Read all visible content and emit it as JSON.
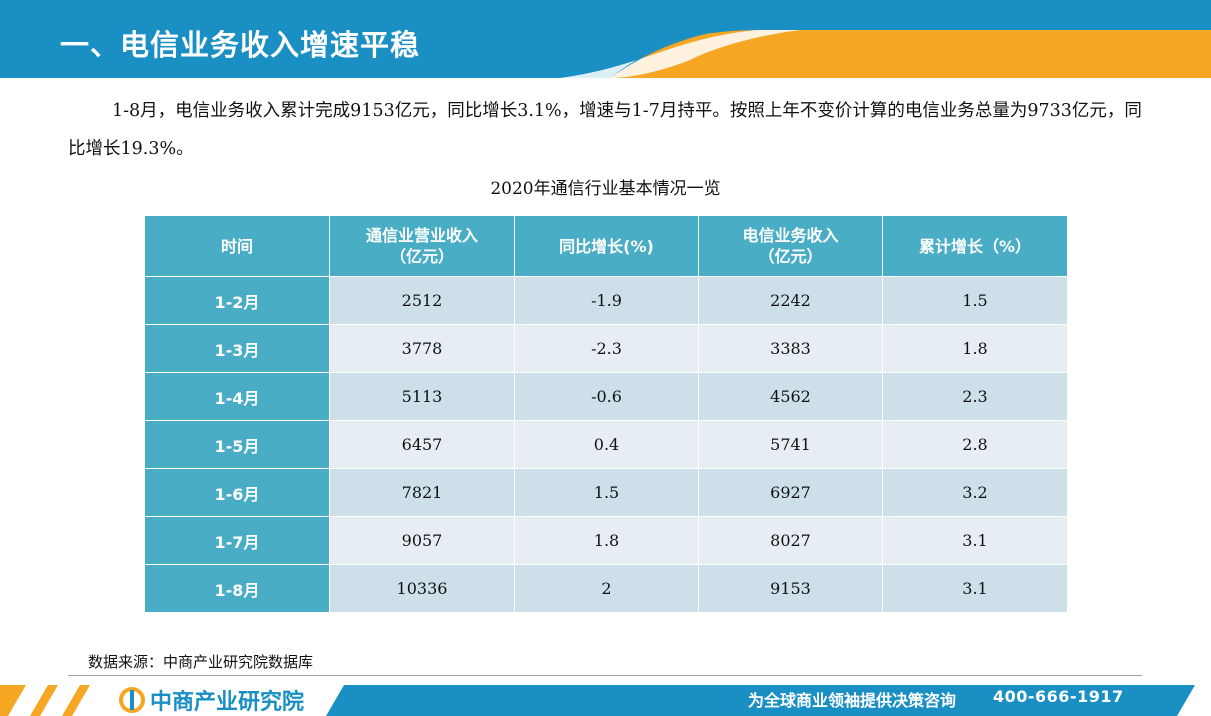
{
  "header": {
    "title": "一、电信业务收入增速平稳"
  },
  "intro": {
    "text": "1-8月，电信业务收入累计完成9153亿元，同比增长3.1%，增速与1-7月持平。按照上年不变价计算的电信业务总量为9733亿元，同比增长19.3%。"
  },
  "table": {
    "title": "2020年通信行业基本情况一览",
    "headers": {
      "period": "时间",
      "comm_revenue_1": "通信业营业收入",
      "comm_revenue_2": "（亿元）",
      "yoy": "同比增长(%)",
      "telecom_revenue_1": "电信业务收入",
      "telecom_revenue_2": "（亿元）",
      "cumulative": "累计增长（%）"
    },
    "rows": [
      {
        "period": "1-2月",
        "comm_revenue": "2512",
        "yoy": "-1.9",
        "telecom_revenue": "2242",
        "cumulative": "1.5"
      },
      {
        "period": "1-3月",
        "comm_revenue": "3778",
        "yoy": "-2.3",
        "telecom_revenue": "3383",
        "cumulative": "1.8"
      },
      {
        "period": "1-4月",
        "comm_revenue": "5113",
        "yoy": "-0.6",
        "telecom_revenue": "4562",
        "cumulative": "2.3"
      },
      {
        "period": "1-5月",
        "comm_revenue": "6457",
        "yoy": "0.4",
        "telecom_revenue": "5741",
        "cumulative": "2.8"
      },
      {
        "period": "1-6月",
        "comm_revenue": "7821",
        "yoy": "1.5",
        "telecom_revenue": "6927",
        "cumulative": "3.2"
      },
      {
        "period": "1-7月",
        "comm_revenue": "9057",
        "yoy": "1.8",
        "telecom_revenue": "8027",
        "cumulative": "3.1"
      },
      {
        "period": "1-8月",
        "comm_revenue": "10336",
        "yoy": "2",
        "telecom_revenue": "9153",
        "cumulative": "3.1"
      }
    ]
  },
  "source": {
    "text": "数据来源：中商产业研究院数据库"
  },
  "footer": {
    "brand": "中商产业研究院",
    "slogan": "为全球商业领袖提供决策咨询",
    "phone": "400-666-1917"
  },
  "colors": {
    "header_blue": "#1a8fc4",
    "accent_orange": "#f5a623",
    "table_header": "#4aadc6",
    "row_odd": "#cddfe8",
    "row_even": "#e6eef3"
  },
  "icons": {
    "brand_logo": "company-logo-icon"
  }
}
